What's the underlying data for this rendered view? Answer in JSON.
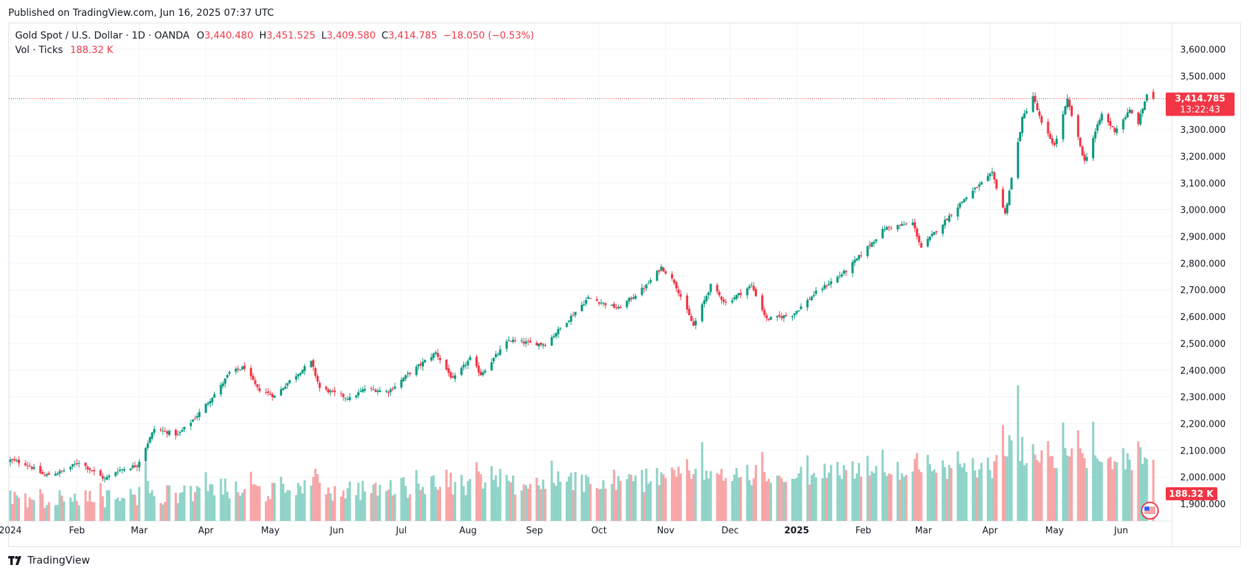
{
  "header": {
    "published": "Published on TradingView.com, Jun 16, 2025 07:37 UTC"
  },
  "legend": {
    "symbol": "Gold Spot / U.S. Dollar · 1D · OANDA",
    "o_label": "O",
    "o_value": "3,440.480",
    "h_label": "H",
    "h_value": "3,451.525",
    "l_label": "L",
    "l_value": "3,409.580",
    "c_label": "C",
    "c_value": "3,414.785",
    "change": "−18.050 (−0.53%)",
    "vol_label": "Vol · Ticks",
    "vol_value": "188.32 K"
  },
  "price_badge": {
    "price": "3,414.785",
    "countdown": "13:22:43"
  },
  "volume_badge": "188.32 K",
  "footer": {
    "brand": "TradingView"
  },
  "colors": {
    "up": "#089981",
    "down": "#f23645",
    "vol_up": "#8fd3c8",
    "vol_down": "#f7a5a7",
    "grid": "#f0f3fa"
  },
  "chart_data": {
    "type": "candlestick",
    "title": "Gold Spot / U.S. Dollar",
    "ylim": [
      1850,
      3660
    ],
    "y_ticks": [
      "1,900.000",
      "2,000.000",
      "2,100.000",
      "2,200.000",
      "2,300.000",
      "2,400.000",
      "2,500.000",
      "2,600.000",
      "2,700.000",
      "2,800.000",
      "2,900.000",
      "3,000.000",
      "3,100.000",
      "3,200.000",
      "3,300.000",
      "3,400.000",
      "3,500.000",
      "3,600.000"
    ],
    "x_ticks": [
      "2024",
      "Feb",
      "Mar",
      "Apr",
      "May",
      "Jun",
      "Jul",
      "Aug",
      "Sep",
      "Oct",
      "Nov",
      "Dec",
      "2025",
      "Feb",
      "Mar",
      "Apr",
      "May",
      "Jun"
    ],
    "x_tick_dates": [
      "2024-01-01",
      "2024-02-01",
      "2024-03-01",
      "2024-04-01",
      "2024-05-01",
      "2024-06-01",
      "2024-07-01",
      "2024-08-01",
      "2024-09-01",
      "2024-10-01",
      "2024-11-01",
      "2024-12-01",
      "2025-01-01",
      "2025-02-01",
      "2025-03-01",
      "2025-04-01",
      "2025-05-01",
      "2025-06-01"
    ],
    "last_close": 3414.785,
    "close_path": [
      {
        "date": "2024-01-01",
        "close": 2063
      },
      {
        "date": "2024-01-08",
        "close": 2050
      },
      {
        "date": "2024-01-17",
        "close": 2006
      },
      {
        "date": "2024-01-25",
        "close": 2020
      },
      {
        "date": "2024-02-02",
        "close": 2056
      },
      {
        "date": "2024-02-14",
        "close": 1992
      },
      {
        "date": "2024-02-20",
        "close": 2025
      },
      {
        "date": "2024-02-29",
        "close": 2044
      },
      {
        "date": "2024-03-08",
        "close": 2180
      },
      {
        "date": "2024-03-19",
        "close": 2158
      },
      {
        "date": "2024-03-28",
        "close": 2230
      },
      {
        "date": "2024-04-08",
        "close": 2340
      },
      {
        "date": "2024-04-12",
        "close": 2390
      },
      {
        "date": "2024-04-19",
        "close": 2410
      },
      {
        "date": "2024-04-25",
        "close": 2330
      },
      {
        "date": "2024-05-03",
        "close": 2302
      },
      {
        "date": "2024-05-10",
        "close": 2360
      },
      {
        "date": "2024-05-20",
        "close": 2430
      },
      {
        "date": "2024-05-24",
        "close": 2333
      },
      {
        "date": "2024-06-07",
        "close": 2293
      },
      {
        "date": "2024-06-14",
        "close": 2330
      },
      {
        "date": "2024-06-25",
        "close": 2320
      },
      {
        "date": "2024-07-05",
        "close": 2390
      },
      {
        "date": "2024-07-17",
        "close": 2465
      },
      {
        "date": "2024-07-25",
        "close": 2364
      },
      {
        "date": "2024-08-02",
        "close": 2443
      },
      {
        "date": "2024-08-07",
        "close": 2384
      },
      {
        "date": "2024-08-20",
        "close": 2512
      },
      {
        "date": "2024-08-30",
        "close": 2500
      },
      {
        "date": "2024-09-06",
        "close": 2497
      },
      {
        "date": "2024-09-16",
        "close": 2583
      },
      {
        "date": "2024-09-26",
        "close": 2670
      },
      {
        "date": "2024-10-10",
        "close": 2630
      },
      {
        "date": "2024-10-23",
        "close": 2715
      },
      {
        "date": "2024-10-30",
        "close": 2785
      },
      {
        "date": "2024-11-05",
        "close": 2730
      },
      {
        "date": "2024-11-14",
        "close": 2565
      },
      {
        "date": "2024-11-22",
        "close": 2716
      },
      {
        "date": "2024-11-29",
        "close": 2650
      },
      {
        "date": "2024-12-11",
        "close": 2717
      },
      {
        "date": "2024-12-18",
        "close": 2590
      },
      {
        "date": "2024-12-30",
        "close": 2607
      },
      {
        "date": "2025-01-10",
        "close": 2690
      },
      {
        "date": "2025-01-24",
        "close": 2771
      },
      {
        "date": "2025-02-11",
        "close": 2930
      },
      {
        "date": "2025-02-24",
        "close": 2950
      },
      {
        "date": "2025-02-28",
        "close": 2858
      },
      {
        "date": "2025-03-14",
        "close": 2985
      },
      {
        "date": "2025-03-20",
        "close": 3040
      },
      {
        "date": "2025-04-02",
        "close": 3135
      },
      {
        "date": "2025-04-08",
        "close": 2983
      },
      {
        "date": "2025-04-16",
        "close": 3340
      },
      {
        "date": "2025-04-21",
        "close": 3425
      },
      {
        "date": "2025-04-25",
        "close": 3320
      },
      {
        "date": "2025-05-01",
        "close": 3239
      },
      {
        "date": "2025-05-07",
        "close": 3410
      },
      {
        "date": "2025-05-15",
        "close": 3180
      },
      {
        "date": "2025-05-23",
        "close": 3357
      },
      {
        "date": "2025-05-29",
        "close": 3295
      },
      {
        "date": "2025-06-05",
        "close": 3370
      },
      {
        "date": "2025-06-09",
        "close": 3325
      },
      {
        "date": "2025-06-13",
        "close": 3432
      },
      {
        "date": "2025-06-16",
        "close": 3414.785
      }
    ],
    "volume": {
      "last": 188320
    }
  }
}
